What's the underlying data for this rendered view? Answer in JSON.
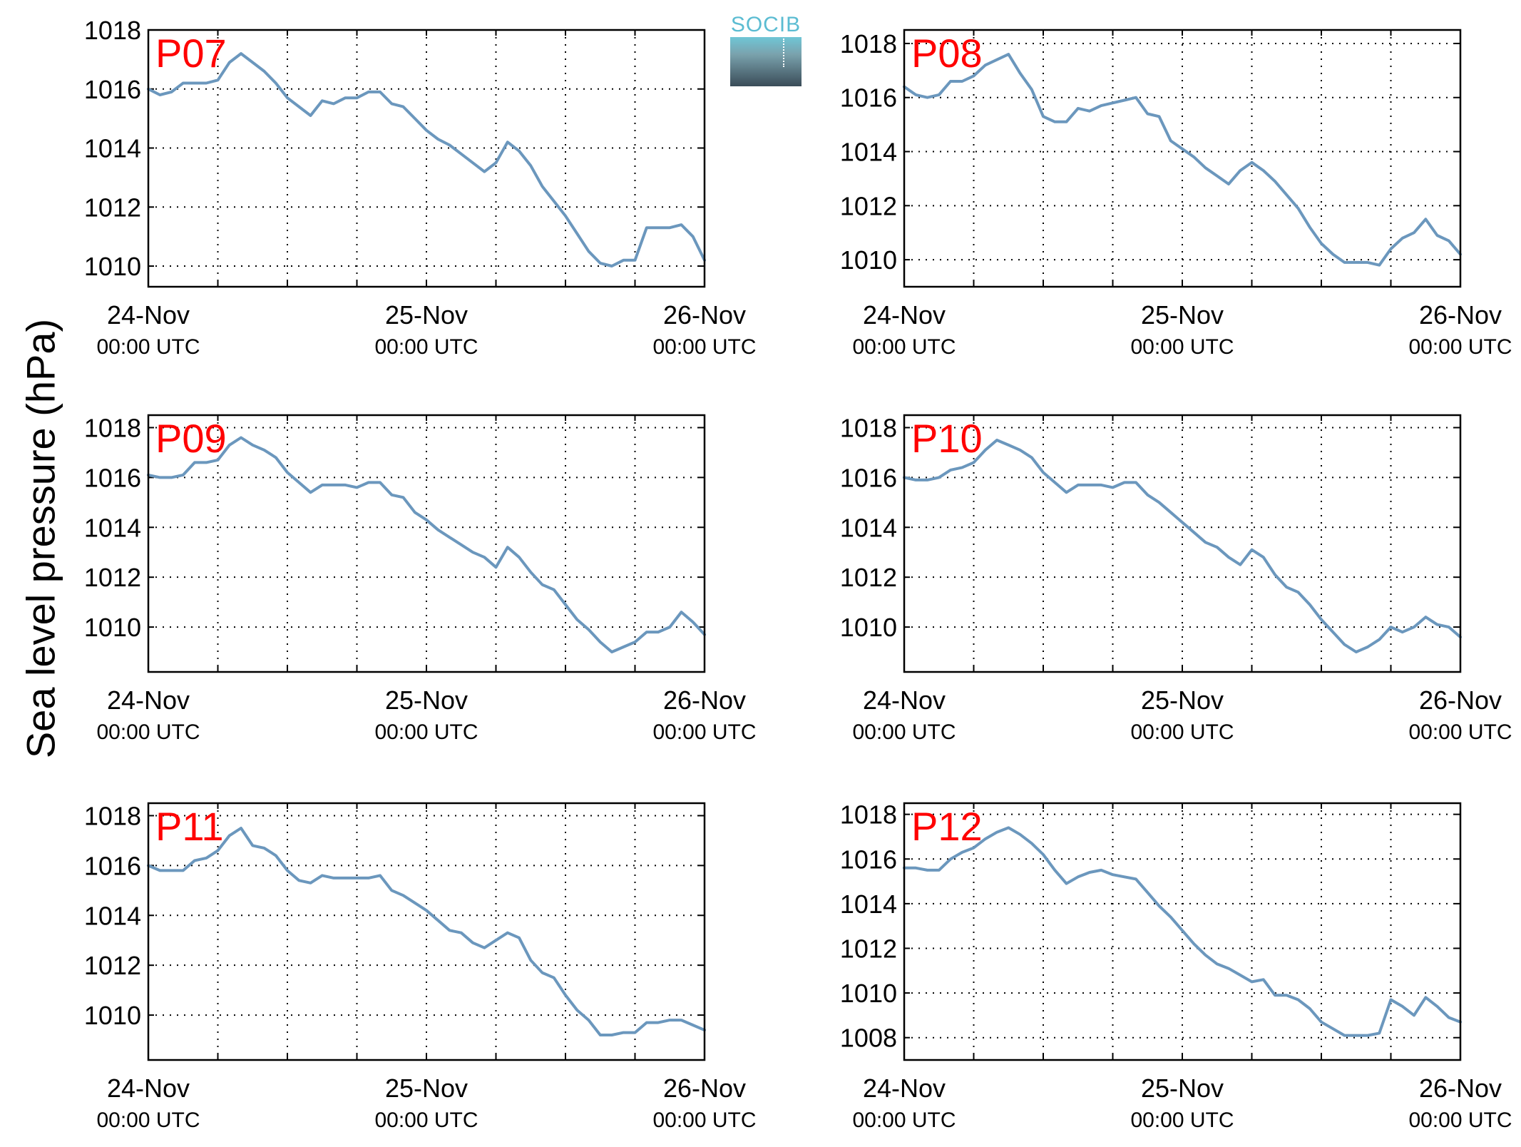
{
  "ylabel": "Sea level pressure (hPa)",
  "logo": {
    "text": "SOCIB"
  },
  "colors": {
    "line": "#6b97bd",
    "panel_label": "#ff0000",
    "axis": "#000000",
    "grid": "#000000"
  },
  "chart_data": [
    {
      "type": "line",
      "title": "P07",
      "x_labels": [
        [
          "24-Nov",
          "00:00 UTC"
        ],
        [
          "25-Nov",
          "00:00 UTC"
        ],
        [
          "26-Nov",
          "00:00 UTC"
        ]
      ],
      "x_range_hours": [
        0,
        48
      ],
      "x_grid_hours": [
        0,
        6,
        12,
        18,
        24,
        30,
        36,
        42,
        48
      ],
      "ylim": [
        1009.3,
        1018
      ],
      "yticks": [
        1010,
        1012,
        1014,
        1016,
        1018
      ],
      "grid": true,
      "series": [
        {
          "x": [
            0,
            1,
            2,
            3,
            4,
            5,
            6,
            7,
            8,
            9,
            10,
            11,
            12,
            13,
            14,
            15,
            16,
            17,
            18,
            19,
            20,
            21,
            22,
            23,
            24,
            25,
            26,
            27,
            28,
            29,
            30,
            31,
            32,
            33,
            34,
            35,
            36,
            37,
            38,
            39,
            40,
            41,
            42,
            43,
            44,
            45,
            46,
            47,
            48
          ],
          "y": [
            1016.0,
            1015.8,
            1015.9,
            1016.2,
            1016.2,
            1016.2,
            1016.3,
            1016.9,
            1017.2,
            1016.9,
            1016.6,
            1016.2,
            1015.7,
            1015.4,
            1015.1,
            1015.6,
            1015.5,
            1015.7,
            1015.7,
            1015.9,
            1015.9,
            1015.5,
            1015.4,
            1015.0,
            1014.6,
            1014.3,
            1014.1,
            1013.8,
            1013.5,
            1013.2,
            1013.5,
            1014.2,
            1013.9,
            1013.4,
            1012.7,
            1012.2,
            1011.7,
            1011.1,
            1010.5,
            1010.1,
            1010.0,
            1010.2,
            1010.2,
            1011.3,
            1011.3,
            1011.3,
            1011.4,
            1011.0,
            1010.2
          ]
        }
      ]
    },
    {
      "type": "line",
      "title": "P08",
      "x_labels": [
        [
          "24-Nov",
          "00:00 UTC"
        ],
        [
          "25-Nov",
          "00:00 UTC"
        ],
        [
          "26-Nov",
          "00:00 UTC"
        ]
      ],
      "x_range_hours": [
        0,
        48
      ],
      "x_grid_hours": [
        0,
        6,
        12,
        18,
        24,
        30,
        36,
        42,
        48
      ],
      "ylim": [
        1009,
        1018.5
      ],
      "yticks": [
        1010,
        1012,
        1014,
        1016,
        1018
      ],
      "grid": true,
      "series": [
        {
          "x": [
            0,
            1,
            2,
            3,
            4,
            5,
            6,
            7,
            8,
            9,
            10,
            11,
            12,
            13,
            14,
            15,
            16,
            17,
            18,
            19,
            20,
            21,
            22,
            23,
            24,
            25,
            26,
            27,
            28,
            29,
            30,
            31,
            32,
            33,
            34,
            35,
            36,
            37,
            38,
            39,
            40,
            41,
            42,
            43,
            44,
            45,
            46,
            47,
            48
          ],
          "y": [
            1016.4,
            1016.1,
            1016.0,
            1016.1,
            1016.6,
            1016.6,
            1016.8,
            1017.2,
            1017.4,
            1017.6,
            1016.9,
            1016.3,
            1015.3,
            1015.1,
            1015.1,
            1015.6,
            1015.5,
            1015.7,
            1015.8,
            1015.9,
            1016.0,
            1015.4,
            1015.3,
            1014.4,
            1014.1,
            1013.8,
            1013.4,
            1013.1,
            1012.8,
            1013.3,
            1013.6,
            1013.3,
            1012.9,
            1012.4,
            1011.9,
            1011.2,
            1010.6,
            1010.2,
            1009.9,
            1009.9,
            1009.9,
            1009.8,
            1010.4,
            1010.8,
            1011.0,
            1011.5,
            1010.9,
            1010.7,
            1010.2
          ]
        }
      ]
    },
    {
      "type": "line",
      "title": "P09",
      "x_labels": [
        [
          "24-Nov",
          "00:00 UTC"
        ],
        [
          "25-Nov",
          "00:00 UTC"
        ],
        [
          "26-Nov",
          "00:00 UTC"
        ]
      ],
      "x_range_hours": [
        0,
        48
      ],
      "x_grid_hours": [
        0,
        6,
        12,
        18,
        24,
        30,
        36,
        42,
        48
      ],
      "ylim": [
        1008.2,
        1018.5
      ],
      "yticks": [
        1010,
        1012,
        1014,
        1016,
        1018
      ],
      "grid": true,
      "series": [
        {
          "x": [
            0,
            1,
            2,
            3,
            4,
            5,
            6,
            7,
            8,
            9,
            10,
            11,
            12,
            13,
            14,
            15,
            16,
            17,
            18,
            19,
            20,
            21,
            22,
            23,
            24,
            25,
            26,
            27,
            28,
            29,
            30,
            31,
            32,
            33,
            34,
            35,
            36,
            37,
            38,
            39,
            40,
            41,
            42,
            43,
            44,
            45,
            46,
            47,
            48
          ],
          "y": [
            1016.1,
            1016.0,
            1016.0,
            1016.1,
            1016.6,
            1016.6,
            1016.7,
            1017.3,
            1017.6,
            1017.3,
            1017.1,
            1016.8,
            1016.2,
            1015.8,
            1015.4,
            1015.7,
            1015.7,
            1015.7,
            1015.6,
            1015.8,
            1015.8,
            1015.3,
            1015.2,
            1014.6,
            1014.3,
            1013.9,
            1013.6,
            1013.3,
            1013.0,
            1012.8,
            1012.4,
            1013.2,
            1012.8,
            1012.2,
            1011.7,
            1011.5,
            1010.9,
            1010.3,
            1009.9,
            1009.4,
            1009.0,
            1009.2,
            1009.4,
            1009.8,
            1009.8,
            1010.0,
            1010.6,
            1010.2,
            1009.7
          ]
        }
      ]
    },
    {
      "type": "line",
      "title": "P10",
      "x_labels": [
        [
          "24-Nov",
          "00:00 UTC"
        ],
        [
          "25-Nov",
          "00:00 UTC"
        ],
        [
          "26-Nov",
          "00:00 UTC"
        ]
      ],
      "x_range_hours": [
        0,
        48
      ],
      "x_grid_hours": [
        0,
        6,
        12,
        18,
        24,
        30,
        36,
        42,
        48
      ],
      "ylim": [
        1008.2,
        1018.5
      ],
      "yticks": [
        1010,
        1012,
        1014,
        1016,
        1018
      ],
      "grid": true,
      "series": [
        {
          "x": [
            0,
            1,
            2,
            3,
            4,
            5,
            6,
            7,
            8,
            9,
            10,
            11,
            12,
            13,
            14,
            15,
            16,
            17,
            18,
            19,
            20,
            21,
            22,
            23,
            24,
            25,
            26,
            27,
            28,
            29,
            30,
            31,
            32,
            33,
            34,
            35,
            36,
            37,
            38,
            39,
            40,
            41,
            42,
            43,
            44,
            45,
            46,
            47,
            48
          ],
          "y": [
            1016.0,
            1015.9,
            1015.9,
            1016.0,
            1016.3,
            1016.4,
            1016.6,
            1017.1,
            1017.5,
            1017.3,
            1017.1,
            1016.8,
            1016.2,
            1015.8,
            1015.4,
            1015.7,
            1015.7,
            1015.7,
            1015.6,
            1015.8,
            1015.8,
            1015.3,
            1015.0,
            1014.6,
            1014.2,
            1013.8,
            1013.4,
            1013.2,
            1012.8,
            1012.5,
            1013.1,
            1012.8,
            1012.1,
            1011.6,
            1011.4,
            1010.9,
            1010.3,
            1009.8,
            1009.3,
            1009.0,
            1009.2,
            1009.5,
            1010.0,
            1009.8,
            1010.0,
            1010.4,
            1010.1,
            1010.0,
            1009.6
          ]
        }
      ]
    },
    {
      "type": "line",
      "title": "P11",
      "x_labels": [
        [
          "24-Nov",
          "00:00 UTC"
        ],
        [
          "25-Nov",
          "00:00 UTC"
        ],
        [
          "26-Nov",
          "00:00 UTC"
        ]
      ],
      "x_range_hours": [
        0,
        48
      ],
      "x_grid_hours": [
        0,
        6,
        12,
        18,
        24,
        30,
        36,
        42,
        48
      ],
      "ylim": [
        1008.2,
        1018.5
      ],
      "yticks": [
        1010,
        1012,
        1014,
        1016,
        1018
      ],
      "grid": true,
      "series": [
        {
          "x": [
            0,
            1,
            2,
            3,
            4,
            5,
            6,
            7,
            8,
            9,
            10,
            11,
            12,
            13,
            14,
            15,
            16,
            17,
            18,
            19,
            20,
            21,
            22,
            23,
            24,
            25,
            26,
            27,
            28,
            29,
            30,
            31,
            32,
            33,
            34,
            35,
            36,
            37,
            38,
            39,
            40,
            41,
            42,
            43,
            44,
            45,
            46,
            47,
            48
          ],
          "y": [
            1016.0,
            1015.8,
            1015.8,
            1015.8,
            1016.2,
            1016.3,
            1016.6,
            1017.2,
            1017.5,
            1016.8,
            1016.7,
            1016.4,
            1015.8,
            1015.4,
            1015.3,
            1015.6,
            1015.5,
            1015.5,
            1015.5,
            1015.5,
            1015.6,
            1015.0,
            1014.8,
            1014.5,
            1014.2,
            1013.8,
            1013.4,
            1013.3,
            1012.9,
            1012.7,
            1013.0,
            1013.3,
            1013.1,
            1012.2,
            1011.7,
            1011.5,
            1010.8,
            1010.2,
            1009.8,
            1009.2,
            1009.2,
            1009.3,
            1009.3,
            1009.7,
            1009.7,
            1009.8,
            1009.8,
            1009.6,
            1009.4
          ]
        }
      ]
    },
    {
      "type": "line",
      "title": "P12",
      "x_labels": [
        [
          "24-Nov",
          "00:00 UTC"
        ],
        [
          "25-Nov",
          "00:00 UTC"
        ],
        [
          "26-Nov",
          "00:00 UTC"
        ]
      ],
      "x_range_hours": [
        0,
        48
      ],
      "x_grid_hours": [
        0,
        6,
        12,
        18,
        24,
        30,
        36,
        42,
        48
      ],
      "ylim": [
        1007,
        1018.5
      ],
      "yticks": [
        1008,
        1010,
        1012,
        1014,
        1016,
        1018
      ],
      "grid": true,
      "series": [
        {
          "x": [
            0,
            1,
            2,
            3,
            4,
            5,
            6,
            7,
            8,
            9,
            10,
            11,
            12,
            13,
            14,
            15,
            16,
            17,
            18,
            19,
            20,
            21,
            22,
            23,
            24,
            25,
            26,
            27,
            28,
            29,
            30,
            31,
            32,
            33,
            34,
            35,
            36,
            37,
            38,
            39,
            40,
            41,
            42,
            43,
            44,
            45,
            46,
            47,
            48
          ],
          "y": [
            1015.6,
            1015.6,
            1015.5,
            1015.5,
            1016.0,
            1016.3,
            1016.5,
            1016.9,
            1017.2,
            1017.4,
            1017.1,
            1016.7,
            1016.2,
            1015.5,
            1014.9,
            1015.2,
            1015.4,
            1015.5,
            1015.3,
            1015.2,
            1015.1,
            1014.5,
            1013.9,
            1013.4,
            1012.8,
            1012.2,
            1011.7,
            1011.3,
            1011.1,
            1010.8,
            1010.5,
            1010.6,
            1009.9,
            1009.9,
            1009.7,
            1009.3,
            1008.7,
            1008.4,
            1008.1,
            1008.1,
            1008.1,
            1008.2,
            1009.7,
            1009.4,
            1009.0,
            1009.8,
            1009.4,
            1008.9,
            1008.7
          ]
        }
      ]
    }
  ]
}
